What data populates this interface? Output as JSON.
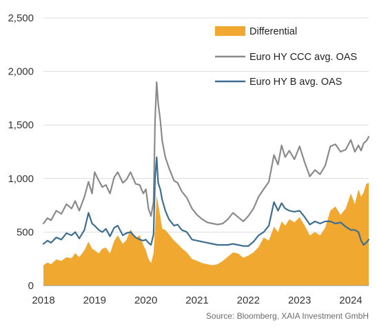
{
  "chart_data": {
    "type": "line",
    "xlim": [
      2018.0,
      2024.35
    ],
    "ylim": [
      0,
      2500
    ],
    "y_ticks": [
      0,
      500,
      1000,
      1500,
      2000,
      2500
    ],
    "y_tick_labels": [
      "0",
      "500",
      "1,000",
      "1,500",
      "2,000",
      "2,500"
    ],
    "x_ticks": [
      2018,
      2019,
      2020,
      2021,
      2022,
      2023,
      2024
    ],
    "x_tick_labels": [
      "2018",
      "2019",
      "2020",
      "2021",
      "2022",
      "2023",
      "2024"
    ],
    "grid": "horizontal",
    "legend": {
      "placement": "top-right"
    },
    "series": [
      {
        "name": "Differential",
        "kind": "area",
        "color": "#f0a830",
        "x": [
          2018.0,
          2018.08,
          2018.15,
          2018.25,
          2018.35,
          2018.45,
          2018.55,
          2018.62,
          2018.7,
          2018.8,
          2018.88,
          2018.95,
          2019.0,
          2019.08,
          2019.15,
          2019.22,
          2019.3,
          2019.38,
          2019.45,
          2019.55,
          2019.62,
          2019.7,
          2019.8,
          2019.88,
          2019.95,
          2020.0,
          2020.05,
          2020.1,
          2020.15,
          2020.18,
          2020.21,
          2020.24,
          2020.28,
          2020.32,
          2020.38,
          2020.45,
          2020.55,
          2020.62,
          2020.7,
          2020.8,
          2020.9,
          2021.0,
          2021.1,
          2021.2,
          2021.3,
          2021.4,
          2021.5,
          2021.6,
          2021.7,
          2021.8,
          2021.9,
          2022.0,
          2022.1,
          2022.2,
          2022.3,
          2022.4,
          2022.5,
          2022.58,
          2022.65,
          2022.72,
          2022.8,
          2022.9,
          2023.0,
          2023.1,
          2023.2,
          2023.3,
          2023.4,
          2023.5,
          2023.6,
          2023.7,
          2023.8,
          2023.9,
          2024.0,
          2024.08,
          2024.15,
          2024.2,
          2024.25,
          2024.3,
          2024.35
        ],
        "values": [
          190,
          215,
          200,
          245,
          230,
          265,
          255,
          305,
          265,
          330,
          410,
          345,
          330,
          300,
          345,
          355,
          300,
          415,
          470,
          390,
          425,
          525,
          445,
          470,
          380,
          330,
          250,
          210,
          300,
          540,
          840,
          760,
          650,
          530,
          520,
          480,
          420,
          390,
          350,
          310,
          250,
          230,
          210,
          200,
          190,
          200,
          230,
          270,
          310,
          300,
          260,
          280,
          310,
          360,
          450,
          420,
          550,
          500,
          600,
          560,
          620,
          590,
          640,
          560,
          470,
          500,
          470,
          540,
          700,
          740,
          660,
          720,
          860,
          760,
          900,
          830,
          870,
          950,
          960
        ]
      },
      {
        "name": "Euro HY CCC avg. OAS",
        "kind": "line",
        "color": "#8a8a8a",
        "x": [
          2018.0,
          2018.08,
          2018.15,
          2018.25,
          2018.35,
          2018.45,
          2018.55,
          2018.62,
          2018.7,
          2018.8,
          2018.88,
          2018.95,
          2019.0,
          2019.08,
          2019.15,
          2019.22,
          2019.3,
          2019.38,
          2019.45,
          2019.55,
          2019.62,
          2019.7,
          2019.8,
          2019.88,
          2019.95,
          2020.0,
          2020.05,
          2020.1,
          2020.15,
          2020.18,
          2020.21,
          2020.24,
          2020.28,
          2020.32,
          2020.38,
          2020.45,
          2020.55,
          2020.62,
          2020.7,
          2020.8,
          2020.9,
          2021.0,
          2021.1,
          2021.2,
          2021.3,
          2021.4,
          2021.5,
          2021.6,
          2021.7,
          2021.8,
          2021.9,
          2022.0,
          2022.1,
          2022.2,
          2022.3,
          2022.4,
          2022.5,
          2022.58,
          2022.65,
          2022.72,
          2022.8,
          2022.9,
          2023.0,
          2023.1,
          2023.2,
          2023.3,
          2023.4,
          2023.5,
          2023.6,
          2023.7,
          2023.8,
          2023.9,
          2024.0,
          2024.08,
          2024.15,
          2024.2,
          2024.25,
          2024.3,
          2024.35
        ],
        "values": [
          580,
          630,
          610,
          700,
          670,
          760,
          720,
          790,
          700,
          830,
          970,
          860,
          1060,
          980,
          920,
          940,
          860,
          1010,
          1060,
          960,
          990,
          1060,
          950,
          940,
          860,
          900,
          720,
          650,
          780,
          1550,
          1900,
          1700,
          1550,
          1350,
          1200,
          1100,
          980,
          960,
          880,
          820,
          720,
          660,
          620,
          590,
          580,
          570,
          580,
          620,
          680,
          640,
          600,
          650,
          720,
          830,
          900,
          970,
          1220,
          1130,
          1310,
          1200,
          1260,
          1180,
          1300,
          1150,
          1020,
          1080,
          1040,
          1120,
          1300,
          1320,
          1250,
          1270,
          1360,
          1250,
          1310,
          1260,
          1330,
          1350,
          1390
        ]
      },
      {
        "name": "Euro HY B avg. OAS",
        "kind": "line",
        "color": "#3d6e8f",
        "x": [
          2018.0,
          2018.08,
          2018.15,
          2018.25,
          2018.35,
          2018.45,
          2018.55,
          2018.62,
          2018.7,
          2018.8,
          2018.88,
          2018.95,
          2019.0,
          2019.08,
          2019.15,
          2019.22,
          2019.3,
          2019.38,
          2019.45,
          2019.55,
          2019.62,
          2019.7,
          2019.8,
          2019.88,
          2019.95,
          2020.0,
          2020.05,
          2020.1,
          2020.15,
          2020.18,
          2020.21,
          2020.24,
          2020.28,
          2020.32,
          2020.38,
          2020.45,
          2020.55,
          2020.62,
          2020.7,
          2020.8,
          2020.9,
          2021.0,
          2021.1,
          2021.2,
          2021.3,
          2021.4,
          2021.5,
          2021.6,
          2021.7,
          2021.8,
          2021.9,
          2022.0,
          2022.1,
          2022.2,
          2022.3,
          2022.4,
          2022.5,
          2022.58,
          2022.65,
          2022.72,
          2022.8,
          2022.9,
          2023.0,
          2023.1,
          2023.2,
          2023.3,
          2023.4,
          2023.5,
          2023.6,
          2023.7,
          2023.8,
          2023.9,
          2024.0,
          2024.08,
          2024.15,
          2024.2,
          2024.25,
          2024.3,
          2024.35
        ],
        "values": [
          390,
          420,
          400,
          450,
          430,
          490,
          470,
          500,
          440,
          520,
          680,
          580,
          560,
          520,
          500,
          530,
          460,
          540,
          560,
          470,
          490,
          500,
          450,
          430,
          420,
          430,
          400,
          380,
          480,
          1000,
          1200,
          960,
          900,
          800,
          700,
          620,
          560,
          570,
          520,
          500,
          430,
          420,
          410,
          400,
          390,
          380,
          380,
          380,
          390,
          380,
          370,
          370,
          410,
          470,
          500,
          560,
          780,
          700,
          770,
          720,
          700,
          690,
          700,
          640,
          570,
          600,
          580,
          600,
          600,
          580,
          590,
          550,
          520,
          520,
          500,
          420,
          380,
          400,
          430
        ]
      }
    ]
  },
  "source": "Source: Bloomberg, XAIA Investment GmbH"
}
